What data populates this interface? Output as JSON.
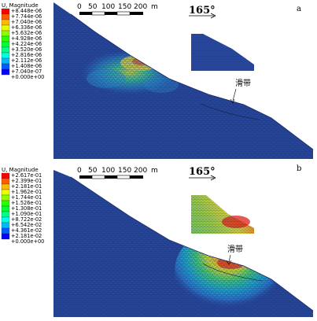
{
  "panels": [
    {
      "id": "a",
      "panel_label": "a",
      "legend_title": "U, Magnitude",
      "legend_values": [
        "+8.448e-06",
        "+7.744e-06",
        "+7.040e-06",
        "+6.336e-06",
        "+5.632e-06",
        "+4.928e-06",
        "+4.224e-06",
        "+3.520e-06",
        "+2.816e-06",
        "+2.112e-06",
        "+1.408e-06",
        "+7.040e-07",
        "+0.000e+00"
      ],
      "scale_ticks": [
        "0",
        "50",
        "100",
        "150",
        "200"
      ],
      "scale_unit": "m",
      "angle_label": "165°",
      "slip_label": "滑带"
    },
    {
      "id": "b",
      "panel_label": "b",
      "legend_title": "U, Magnitude",
      "legend_values": [
        "+2.617e-01",
        "+2.399e-01",
        "+2.181e-01",
        "+1.962e-01",
        "+1.744e-01",
        "+1.526e-01",
        "+1.308e-01",
        "+1.090e-01",
        "+8.722e-02",
        "+6.542e-02",
        "+4.361e-02",
        "+2.181e-02",
        "+0.000e+00"
      ],
      "scale_ticks": [
        "0",
        "50",
        "100",
        "150",
        "200"
      ],
      "scale_unit": "m",
      "angle_label": "165°",
      "slip_label": "滑带"
    }
  ],
  "colors": {
    "colormap": [
      "#0000ff",
      "#005cff",
      "#00b9ff",
      "#00ffe7",
      "#00ff8b",
      "#00ff2e",
      "#2eff00",
      "#8bff00",
      "#e7ff00",
      "#ffb900",
      "#ff5c00",
      "#ff0000"
    ],
    "mesh_base": "#27479a",
    "mesh_line": "#16286a",
    "slope_edge": "#1a2c6a"
  }
}
